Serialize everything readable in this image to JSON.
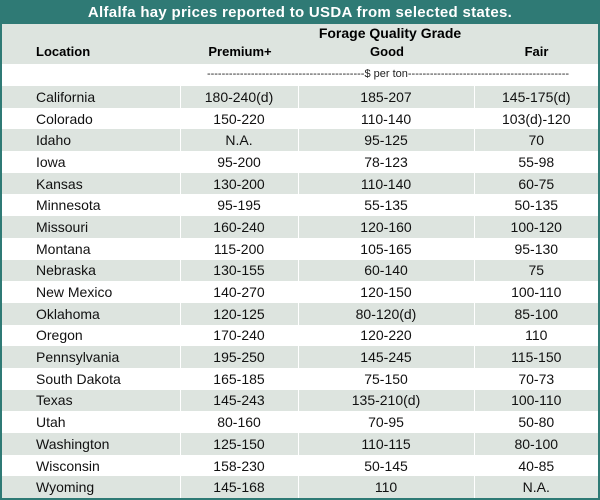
{
  "title": "Alfalfa hay prices reported to USDA from selected states.",
  "grade_title": "Forage Quality Grade",
  "columns": {
    "location": "Location",
    "premium": "Premium+",
    "good": "Good",
    "fair": "Fair"
  },
  "units": "-------------------------------------------$ per ton--------------------------------------------",
  "rows": [
    {
      "location": "California",
      "premium": "180-240(d)",
      "good": "185-207",
      "fair": "145-175(d)"
    },
    {
      "location": "Colorado",
      "premium": "150-220",
      "good": "110-140",
      "fair": "103(d)-120"
    },
    {
      "location": "Idaho",
      "premium": "N.A.",
      "good": "95-125",
      "fair": "70"
    },
    {
      "location": "Iowa",
      "premium": "95-200",
      "good": "78-123",
      "fair": "55-98"
    },
    {
      "location": "Kansas",
      "premium": "130-200",
      "good": "110-140",
      "fair": "60-75"
    },
    {
      "location": "Minnesota",
      "premium": "95-195",
      "good": "55-135",
      "fair": "50-135"
    },
    {
      "location": "Missouri",
      "premium": "160-240",
      "good": "120-160",
      "fair": "100-120"
    },
    {
      "location": "Montana",
      "premium": "115-200",
      "good": "105-165",
      "fair": "95-130"
    },
    {
      "location": "Nebraska",
      "premium": "130-155",
      "good": "60-140",
      "fair": "75"
    },
    {
      "location": "New Mexico",
      "premium": "140-270",
      "good": "120-150",
      "fair": "100-110"
    },
    {
      "location": "Oklahoma",
      "premium": "120-125",
      "good": "80-120(d)",
      "fair": "85-100"
    },
    {
      "location": "Oregon",
      "premium": "170-240",
      "good": "120-220",
      "fair": "110"
    },
    {
      "location": "Pennsylvania",
      "premium": "195-250",
      "good": "145-245",
      "fair": "115-150"
    },
    {
      "location": "South Dakota",
      "premium": "165-185",
      "good": "75-150",
      "fair": "70-73"
    },
    {
      "location": "Texas",
      "premium": "145-243",
      "good": "135-210(d)",
      "fair": "100-110"
    },
    {
      "location": "Utah",
      "premium": "80-160",
      "good": "70-95",
      "fair": "50-80"
    },
    {
      "location": "Washington",
      "premium": "125-150",
      "good": "110-115",
      "fair": "80-100"
    },
    {
      "location": "Wisconsin",
      "premium": "158-230",
      "good": "50-145",
      "fair": "40-85"
    },
    {
      "location": "Wyoming",
      "premium": "145-168",
      "good": "110",
      "fair": "N.A."
    }
  ],
  "colors": {
    "title_bar": "#2f7a75",
    "row_shade": "#dde4df",
    "rule": "#5f6b6b"
  }
}
